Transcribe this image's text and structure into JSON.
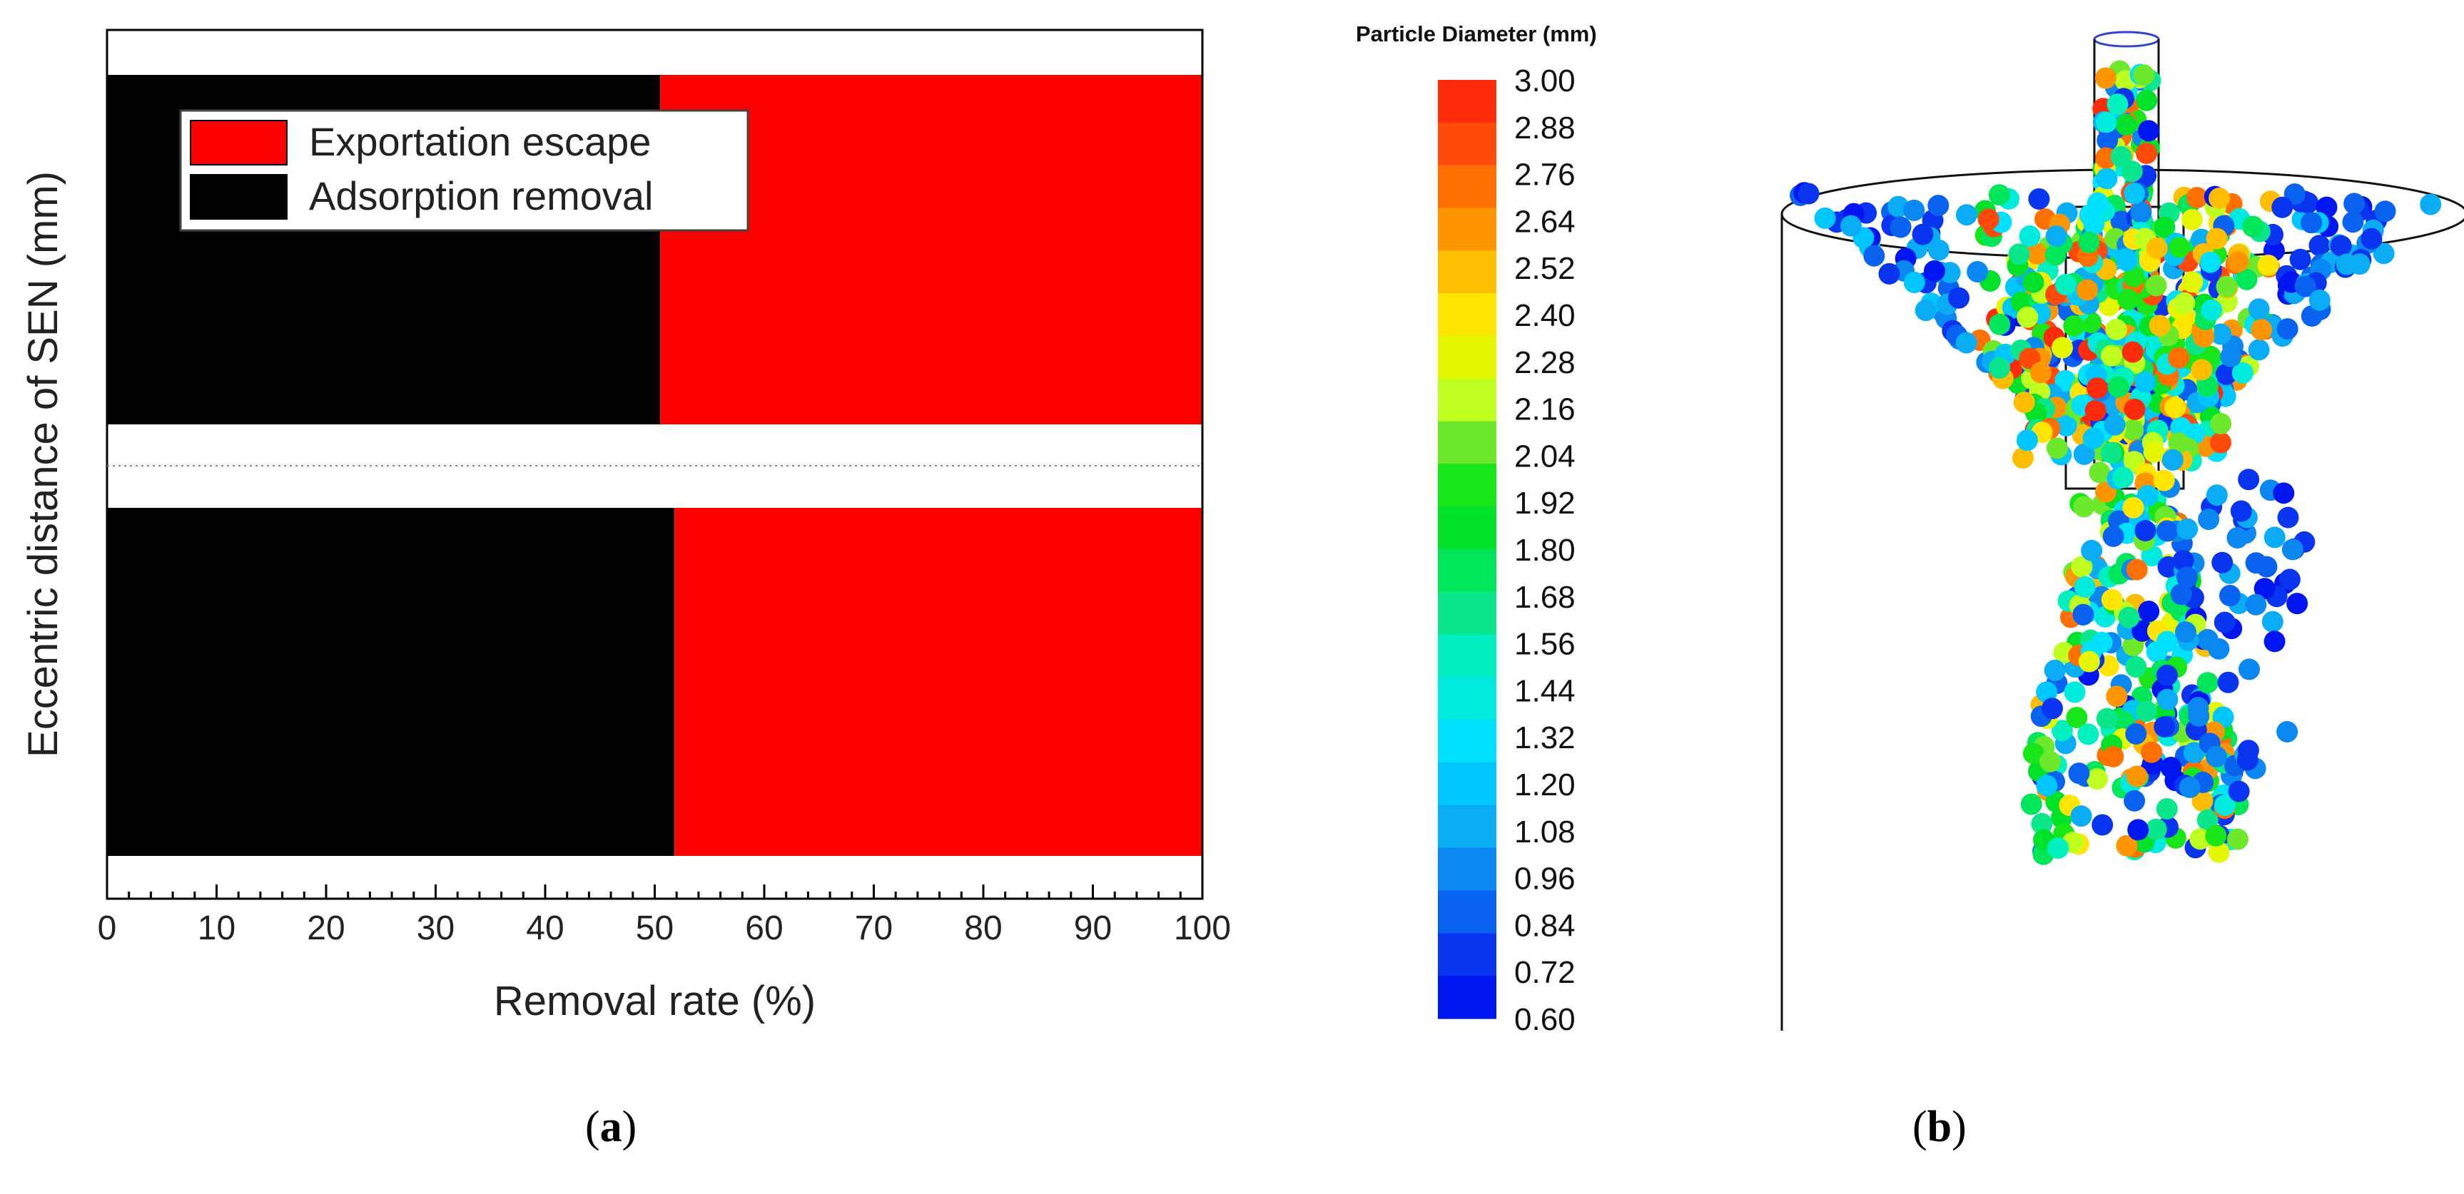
{
  "chart_data": [
    {
      "type": "bar",
      "orientation": "horizontal",
      "stacked": true,
      "title": "",
      "xlabel": "Removal rate (%)",
      "ylabel": "Eccentric distance of SEN (mm)",
      "xlim": [
        0,
        100
      ],
      "xticks": [
        "0",
        "10",
        "20",
        "30",
        "40",
        "50",
        "60",
        "70",
        "80",
        "90",
        "100"
      ],
      "categories": [
        "",
        ""
      ],
      "series": [
        {
          "name": "Adsorption removal",
          "color": "#000000",
          "values": [
            50.5,
            51.8
          ]
        },
        {
          "name": "Exportation escape",
          "color": "#ff0000",
          "values": [
            49.5,
            48.2
          ]
        }
      ],
      "legend": {
        "placement": "top-left",
        "order": [
          "Exportation escape",
          "Adsorption removal"
        ]
      },
      "grid": false,
      "caption": "a"
    },
    {
      "type": "scatter",
      "description_type": "particle-simulation",
      "colorbar": {
        "title": "Particle Diameter (mm)",
        "ticks": [
          "3.00",
          "2.88",
          "2.76",
          "2.64",
          "2.52",
          "2.40",
          "2.28",
          "2.16",
          "2.04",
          "1.92",
          "1.80",
          "1.68",
          "1.56",
          "1.44",
          "1.32",
          "1.20",
          "1.08",
          "0.96",
          "0.84",
          "0.72",
          "0.60"
        ],
        "colors": [
          "#ff2a0a",
          "#ff4a0a",
          "#ff7000",
          "#ff9500",
          "#ffbd00",
          "#ffe500",
          "#e5f700",
          "#bfff1f",
          "#6de82a",
          "#19e619",
          "#00e12a",
          "#00e65a",
          "#0ae68c",
          "#00f0bf",
          "#00ebe0",
          "#00e0ff",
          "#00c6ff",
          "#0aadf5",
          "#0a87f0",
          "#0a63f0",
          "#0a35f0",
          "#0016f0"
        ],
        "range": [
          0.6,
          3.0
        ]
      },
      "caption": "b"
    }
  ]
}
